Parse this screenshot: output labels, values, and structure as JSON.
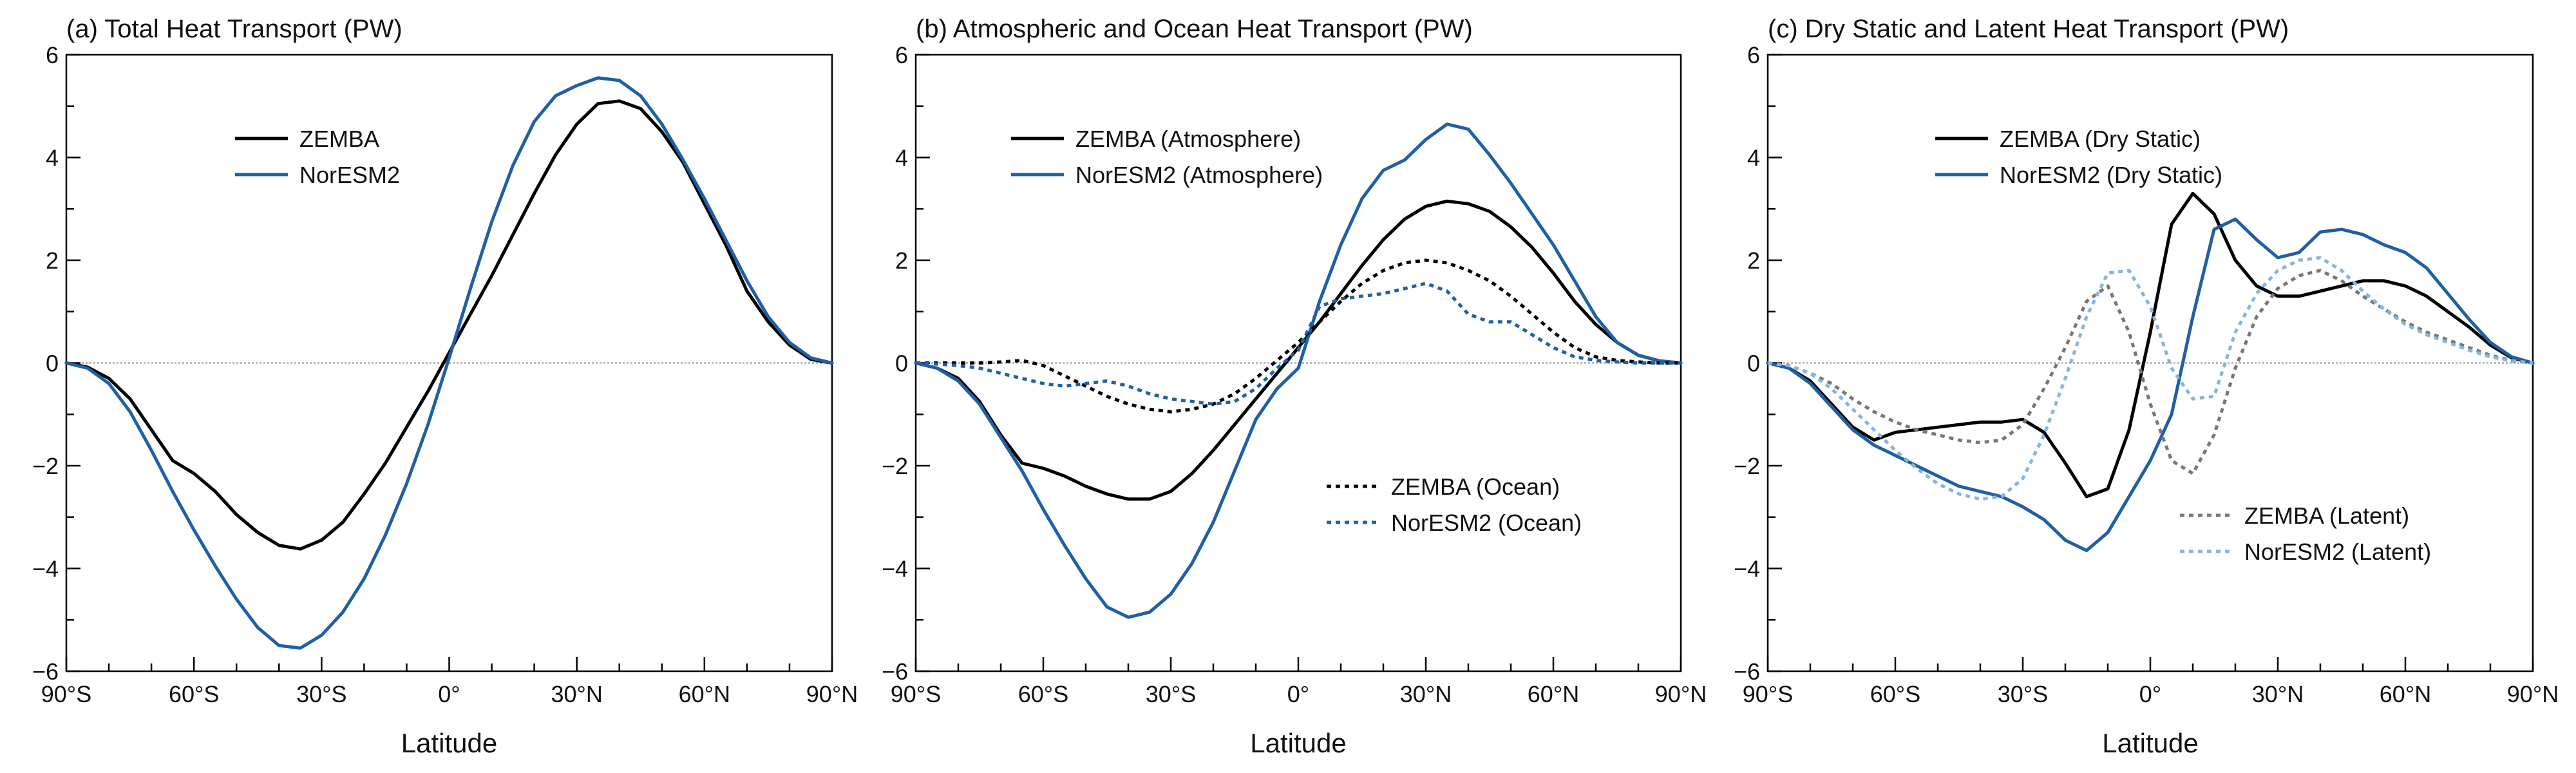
{
  "figure": {
    "xlabel": "Latitude",
    "x_ticks": [
      -90,
      -60,
      -30,
      0,
      30,
      60,
      90
    ],
    "x_tick_labels": [
      "90°S",
      "60°S",
      "30°S",
      "0°",
      "30°N",
      "60°N",
      "90°N"
    ],
    "y_ticks": [
      -6,
      -4,
      -2,
      0,
      2,
      4,
      6
    ],
    "y_tick_labels": [
      "−6",
      "−4",
      "−2",
      "0",
      "2",
      "4",
      "6"
    ]
  },
  "chart_data": [
    {
      "type": "line",
      "title": "(a) Total Heat Transport (PW)",
      "xlabel": "Latitude",
      "xlim": [
        -90,
        90
      ],
      "ylim": [
        -6,
        6
      ],
      "grid": false,
      "legend": "upper-left",
      "series": [
        {
          "name": "ZEMBA",
          "color": "#000000",
          "dash": "solid",
          "x": [
            -90,
            -85,
            -80,
            -75,
            -70,
            -65,
            -60,
            -55,
            -50,
            -45,
            -40,
            -35,
            -30,
            -25,
            -20,
            -15,
            -10,
            -5,
            0,
            5,
            10,
            15,
            20,
            25,
            30,
            35,
            40,
            45,
            50,
            55,
            60,
            65,
            70,
            75,
            80,
            85,
            90
          ],
          "y": [
            0,
            -0.08,
            -0.3,
            -0.7,
            -1.3,
            -1.9,
            -2.15,
            -2.5,
            -2.95,
            -3.3,
            -3.55,
            -3.62,
            -3.45,
            -3.1,
            -2.55,
            -1.95,
            -1.25,
            -0.55,
            0.2,
            0.95,
            1.7,
            2.5,
            3.3,
            4.05,
            4.65,
            5.05,
            5.1,
            4.95,
            4.5,
            3.9,
            3.1,
            2.3,
            1.4,
            0.8,
            0.35,
            0.07,
            0
          ]
        },
        {
          "name": "NorESM2",
          "color": "#1f5fa6",
          "dash": "solid",
          "x": [
            -90,
            -85,
            -80,
            -75,
            -70,
            -65,
            -60,
            -55,
            -50,
            -45,
            -40,
            -35,
            -30,
            -25,
            -20,
            -15,
            -10,
            -5,
            0,
            5,
            10,
            15,
            20,
            25,
            30,
            35,
            40,
            45,
            50,
            55,
            60,
            65,
            70,
            75,
            80,
            85,
            90
          ],
          "y": [
            0,
            -0.1,
            -0.4,
            -0.95,
            -1.7,
            -2.5,
            -3.25,
            -3.95,
            -4.6,
            -5.15,
            -5.5,
            -5.55,
            -5.3,
            -4.85,
            -4.2,
            -3.35,
            -2.35,
            -1.2,
            0.1,
            1.45,
            2.75,
            3.85,
            4.7,
            5.2,
            5.4,
            5.55,
            5.5,
            5.2,
            4.65,
            3.95,
            3.2,
            2.4,
            1.6,
            0.9,
            0.4,
            0.1,
            0
          ]
        }
      ]
    },
    {
      "type": "line",
      "title": "(b) Atmospheric and Ocean Heat Transport (PW)",
      "xlabel": "Latitude",
      "xlim": [
        -90,
        90
      ],
      "ylim": [
        -6,
        6
      ],
      "grid": false,
      "legend": "upper-left and lower-right",
      "series": [
        {
          "name": "ZEMBA (Atmosphere)",
          "color": "#000000",
          "dash": "solid",
          "x": [
            -90,
            -85,
            -80,
            -75,
            -70,
            -65,
            -60,
            -55,
            -50,
            -45,
            -40,
            -35,
            -30,
            -25,
            -20,
            -15,
            -10,
            -5,
            0,
            5,
            10,
            15,
            20,
            25,
            30,
            35,
            40,
            45,
            50,
            55,
            60,
            65,
            70,
            75,
            80,
            85,
            90
          ],
          "y": [
            0,
            -0.1,
            -0.3,
            -0.75,
            -1.4,
            -1.95,
            -2.05,
            -2.2,
            -2.4,
            -2.55,
            -2.65,
            -2.65,
            -2.5,
            -2.15,
            -1.7,
            -1.2,
            -0.7,
            -0.2,
            0.3,
            0.8,
            1.35,
            1.9,
            2.4,
            2.8,
            3.05,
            3.15,
            3.1,
            2.95,
            2.65,
            2.25,
            1.75,
            1.2,
            0.75,
            0.4,
            0.15,
            0.04,
            0
          ]
        },
        {
          "name": "NorESM2 (Atmosphere)",
          "color": "#1f5fa6",
          "dash": "solid",
          "x": [
            -90,
            -85,
            -80,
            -75,
            -70,
            -65,
            -60,
            -55,
            -50,
            -45,
            -40,
            -35,
            -30,
            -25,
            -20,
            -15,
            -10,
            -5,
            0,
            5,
            10,
            15,
            20,
            25,
            30,
            35,
            40,
            45,
            50,
            55,
            60,
            65,
            70,
            75,
            80,
            85,
            90
          ],
          "y": [
            0,
            -0.1,
            -0.35,
            -0.8,
            -1.45,
            -2.1,
            -2.85,
            -3.55,
            -4.2,
            -4.75,
            -4.95,
            -4.85,
            -4.5,
            -3.9,
            -3.1,
            -2.1,
            -1.1,
            -0.5,
            -0.1,
            1.2,
            2.3,
            3.2,
            3.75,
            3.95,
            4.35,
            4.65,
            4.55,
            4.05,
            3.5,
            2.9,
            2.3,
            1.6,
            0.9,
            0.4,
            0.15,
            0.04,
            0
          ]
        },
        {
          "name": "ZEMBA (Ocean)",
          "color": "#000000",
          "dash": "dotted",
          "x": [
            -90,
            -85,
            -80,
            -75,
            -70,
            -65,
            -60,
            -55,
            -50,
            -45,
            -40,
            -35,
            -30,
            -25,
            -20,
            -15,
            -10,
            -5,
            0,
            5,
            10,
            15,
            20,
            25,
            30,
            35,
            40,
            45,
            50,
            55,
            60,
            65,
            70,
            75,
            80,
            85,
            90
          ],
          "y": [
            0,
            0,
            0,
            0,
            0.02,
            0.05,
            -0.05,
            -0.25,
            -0.45,
            -0.65,
            -0.8,
            -0.9,
            -0.95,
            -0.9,
            -0.8,
            -0.6,
            -0.3,
            0.05,
            0.4,
            0.8,
            1.2,
            1.55,
            1.8,
            1.95,
            2,
            1.95,
            1.8,
            1.6,
            1.3,
            0.95,
            0.6,
            0.3,
            0.12,
            0.05,
            0.02,
            0,
            0
          ]
        },
        {
          "name": "NorESM2 (Ocean)",
          "color": "#1f5fa6",
          "dash": "dotted",
          "x": [
            -90,
            -85,
            -80,
            -75,
            -70,
            -65,
            -60,
            -55,
            -50,
            -45,
            -40,
            -35,
            -30,
            -25,
            -20,
            -15,
            -10,
            -5,
            0,
            5,
            10,
            15,
            20,
            25,
            30,
            35,
            40,
            45,
            50,
            55,
            60,
            65,
            70,
            75,
            80,
            85,
            90
          ],
          "y": [
            0,
            -0.02,
            -0.05,
            -0.1,
            -0.2,
            -0.3,
            -0.4,
            -0.45,
            -0.4,
            -0.35,
            -0.45,
            -0.6,
            -0.7,
            -0.75,
            -0.8,
            -0.75,
            -0.5,
            -0.1,
            0.25,
            1.1,
            1.25,
            1.3,
            1.35,
            1.45,
            1.55,
            1.4,
            0.95,
            0.8,
            0.8,
            0.55,
            0.3,
            0.12,
            0.05,
            0.02,
            0,
            0,
            0
          ]
        }
      ]
    },
    {
      "type": "line",
      "title": "(c) Dry Static and Latent Heat Transport (PW)",
      "xlabel": "Latitude",
      "xlim": [
        -90,
        90
      ],
      "ylim": [
        -6,
        6
      ],
      "grid": false,
      "legend": "upper-left and lower-right",
      "series": [
        {
          "name": "ZEMBA (Dry Static)",
          "color": "#000000",
          "dash": "solid",
          "x": [
            -90,
            -85,
            -80,
            -75,
            -70,
            -65,
            -60,
            -55,
            -50,
            -45,
            -40,
            -35,
            -30,
            -25,
            -20,
            -15,
            -10,
            -5,
            0,
            5,
            10,
            15,
            20,
            25,
            30,
            35,
            40,
            45,
            50,
            55,
            60,
            65,
            70,
            75,
            80,
            85,
            90
          ],
          "y": [
            0,
            -0.1,
            -0.35,
            -0.8,
            -1.25,
            -1.5,
            -1.35,
            -1.3,
            -1.25,
            -1.2,
            -1.15,
            -1.15,
            -1.1,
            -1.35,
            -1.95,
            -2.6,
            -2.45,
            -1.3,
            0.6,
            2.7,
            3.3,
            2.9,
            2.0,
            1.5,
            1.3,
            1.3,
            1.4,
            1.5,
            1.6,
            1.6,
            1.5,
            1.3,
            1.0,
            0.7,
            0.35,
            0.1,
            0
          ]
        },
        {
          "name": "NorESM2 (Dry Static)",
          "color": "#1f5fa6",
          "dash": "solid",
          "x": [
            -90,
            -85,
            -80,
            -75,
            -70,
            -65,
            -60,
            -55,
            -50,
            -45,
            -40,
            -35,
            -30,
            -25,
            -20,
            -15,
            -10,
            -5,
            0,
            5,
            10,
            15,
            20,
            25,
            30,
            35,
            40,
            45,
            50,
            55,
            60,
            65,
            70,
            75,
            80,
            85,
            90
          ],
          "y": [
            0,
            -0.1,
            -0.4,
            -0.85,
            -1.3,
            -1.6,
            -1.8,
            -2.0,
            -2.2,
            -2.4,
            -2.5,
            -2.6,
            -2.8,
            -3.05,
            -3.45,
            -3.65,
            -3.3,
            -2.6,
            -1.9,
            -1.0,
            0.9,
            2.6,
            2.8,
            2.4,
            2.05,
            2.15,
            2.55,
            2.6,
            2.5,
            2.3,
            2.15,
            1.85,
            1.35,
            0.85,
            0.4,
            0.12,
            0
          ]
        },
        {
          "name": "ZEMBA (Latent)",
          "color": "#777777",
          "dash": "dotted",
          "x": [
            -90,
            -85,
            -80,
            -75,
            -70,
            -65,
            -60,
            -55,
            -50,
            -45,
            -40,
            -35,
            -30,
            -25,
            -20,
            -15,
            -10,
            -5,
            0,
            5,
            10,
            15,
            20,
            25,
            30,
            35,
            40,
            45,
            50,
            55,
            60,
            65,
            70,
            75,
            80,
            85,
            90
          ],
          "y": [
            0,
            -0.05,
            -0.2,
            -0.4,
            -0.7,
            -0.95,
            -1.15,
            -1.3,
            -1.4,
            -1.5,
            -1.55,
            -1.5,
            -1.2,
            -0.5,
            0.3,
            1.2,
            1.5,
            0.6,
            -0.8,
            -1.9,
            -2.15,
            -1.4,
            -0.1,
            0.9,
            1.45,
            1.7,
            1.8,
            1.6,
            1.3,
            1.05,
            0.8,
            0.6,
            0.45,
            0.3,
            0.15,
            0.05,
            0
          ]
        },
        {
          "name": "NorESM2 (Latent)",
          "color": "#86b4e0",
          "dash": "dotted",
          "x": [
            -90,
            -85,
            -80,
            -75,
            -70,
            -65,
            -60,
            -55,
            -50,
            -45,
            -40,
            -35,
            -30,
            -25,
            -20,
            -15,
            -10,
            -5,
            0,
            5,
            10,
            15,
            20,
            25,
            30,
            35,
            40,
            45,
            50,
            55,
            60,
            65,
            70,
            75,
            80,
            85,
            90
          ],
          "y": [
            0,
            -0.05,
            -0.2,
            -0.5,
            -0.9,
            -1.3,
            -1.7,
            -2.05,
            -2.35,
            -2.55,
            -2.65,
            -2.6,
            -2.25,
            -1.4,
            -0.3,
            0.9,
            1.75,
            1.8,
            1.1,
            -0.1,
            -0.7,
            -0.65,
            0.6,
            1.35,
            1.8,
            2.0,
            2.05,
            1.8,
            1.4,
            1.05,
            0.75,
            0.55,
            0.4,
            0.25,
            0.12,
            0.04,
            0
          ]
        }
      ]
    }
  ]
}
